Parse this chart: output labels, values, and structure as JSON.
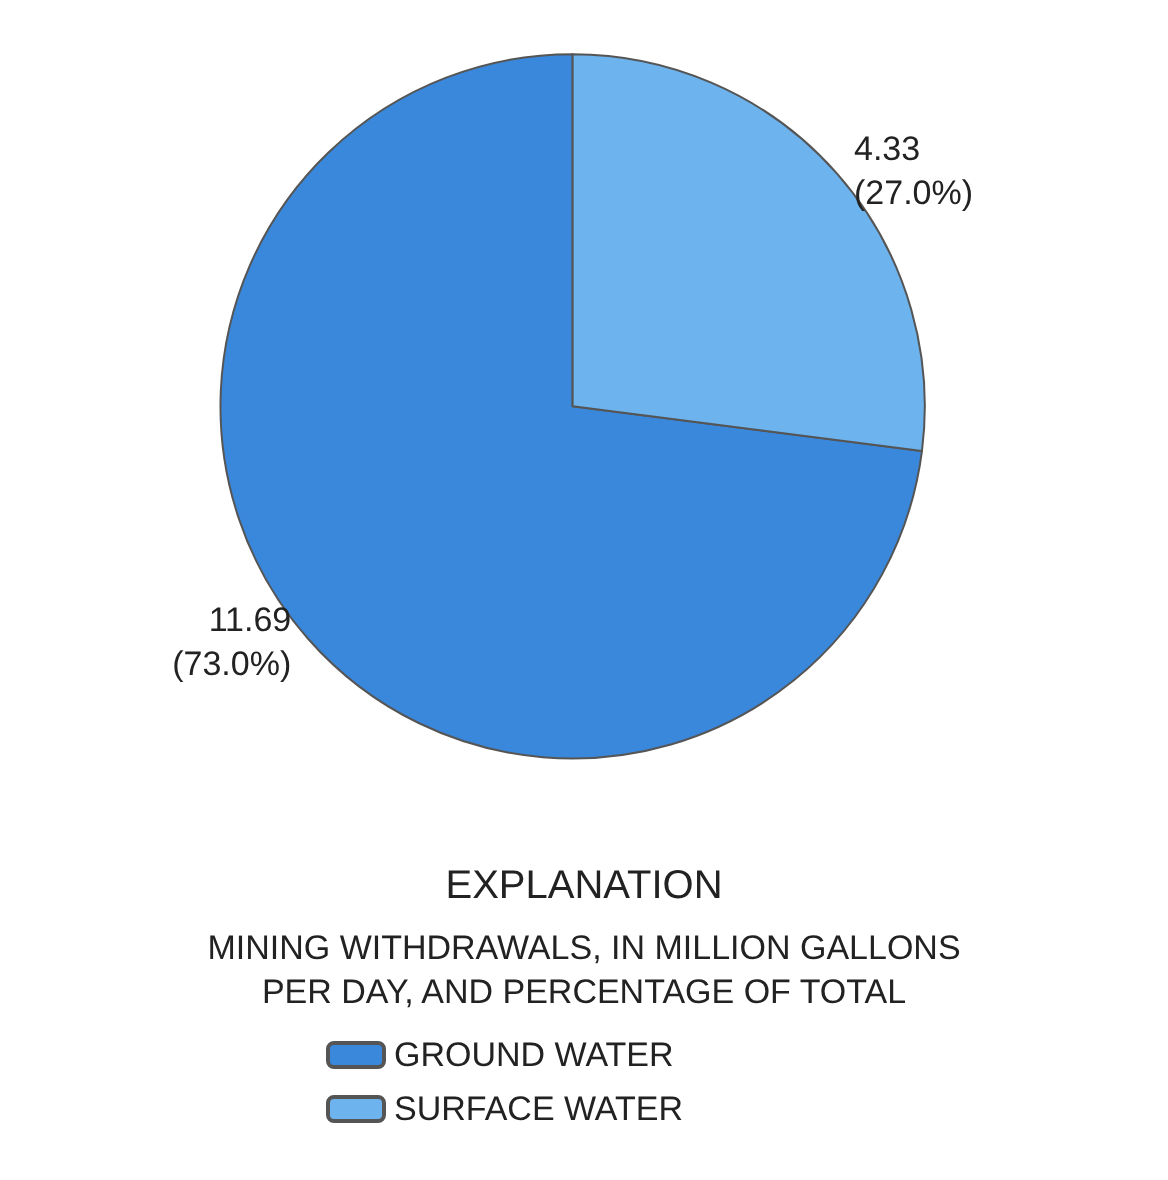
{
  "chart_data": {
    "type": "pie",
    "legend_title": "EXPLANATION",
    "subtitle": "MINING WITHDRAWALS, IN MILLION GALLONS\nPER DAY, AND PERCENTAGE OF TOTAL",
    "categories": [
      "GROUND WATER",
      "SURFACE WATER"
    ],
    "values": [
      11.69,
      4.33
    ],
    "colors": [
      "#3a88db",
      "#6db3ee"
    ],
    "value_labels": [
      "11.69\n(73.0%)",
      "4.33\n(27.0%)"
    ],
    "legend": "bottom"
  }
}
